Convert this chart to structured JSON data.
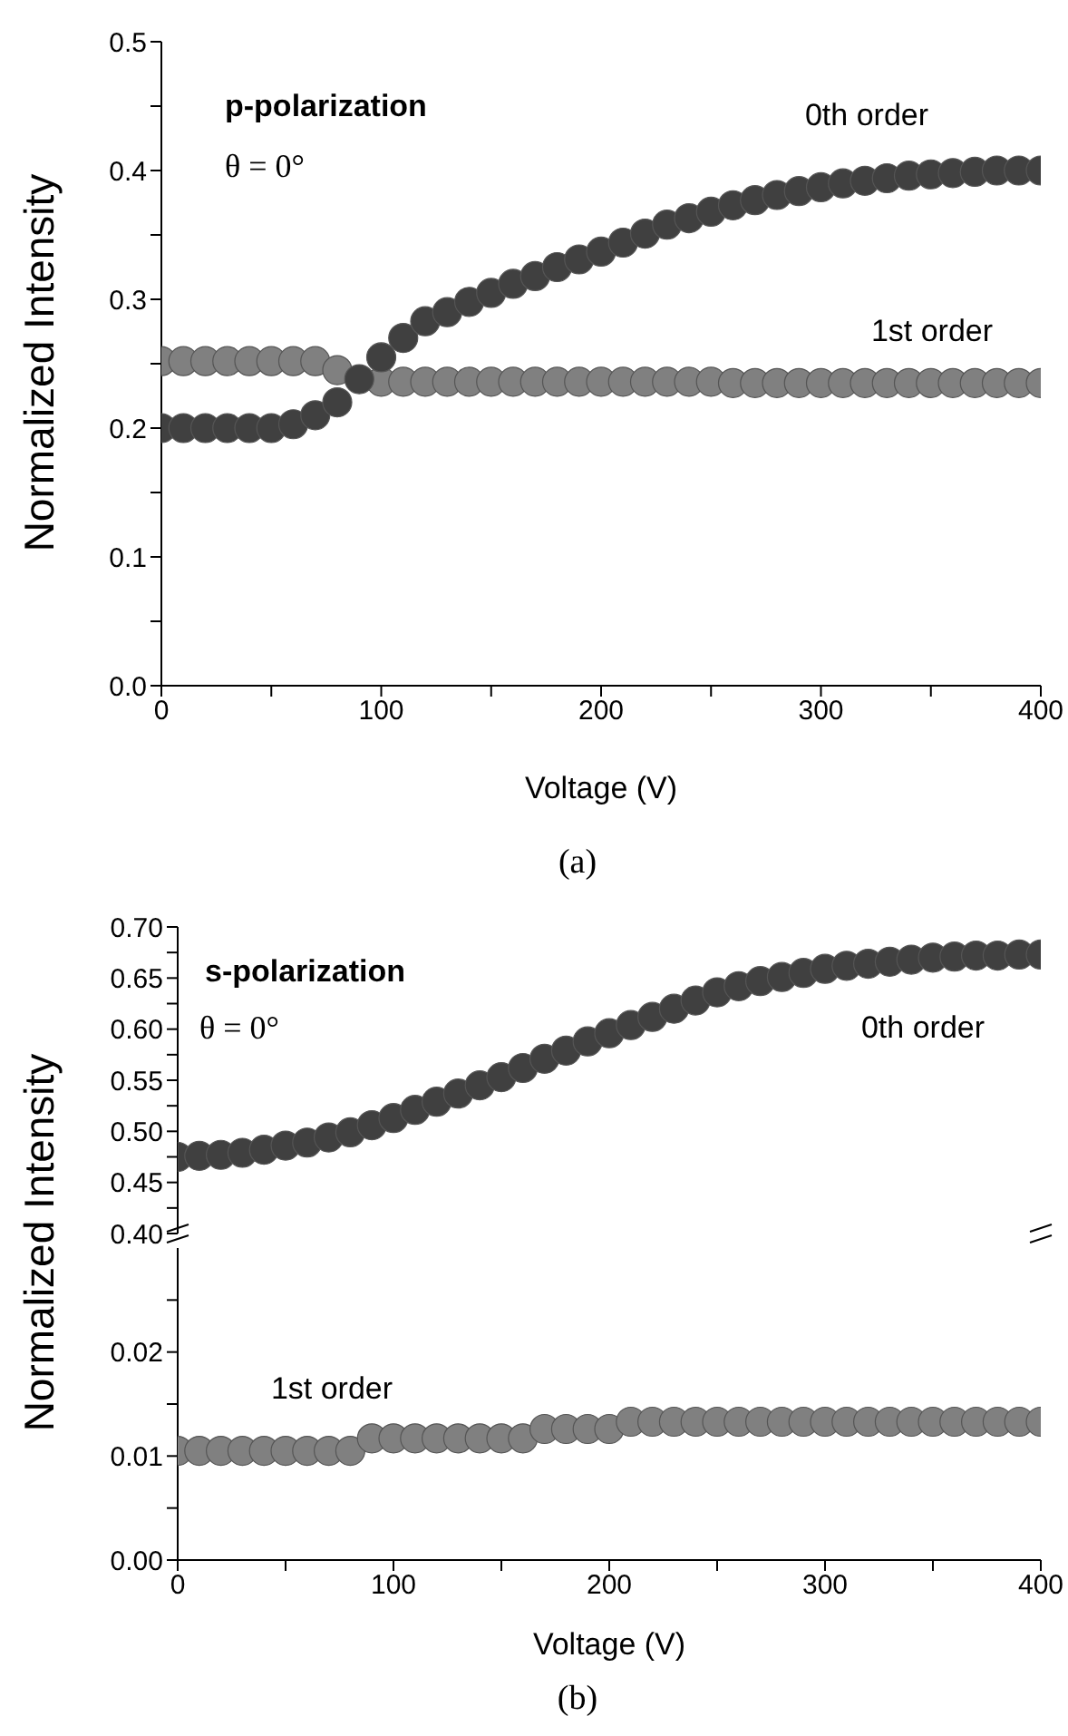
{
  "chart_data": [
    {
      "type": "scatter",
      "xlabel": "Voltage (V)",
      "ylabel": "Normalized Intensity",
      "annotations": [
        "p-polarization",
        "θ = 0°",
        "(a)"
      ],
      "marker": "circle",
      "x": [
        0,
        10,
        20,
        30,
        40,
        50,
        60,
        70,
        80,
        90,
        100,
        110,
        120,
        130,
        140,
        150,
        160,
        170,
        180,
        190,
        200,
        210,
        220,
        230,
        240,
        250,
        260,
        270,
        280,
        290,
        300,
        310,
        320,
        330,
        340,
        350,
        360,
        370,
        380,
        390,
        400
      ],
      "series": [
        {
          "name": "0th order",
          "color": "#404040",
          "values": [
            0.2,
            0.2,
            0.2,
            0.2,
            0.2,
            0.2,
            0.203,
            0.21,
            0.22,
            0.238,
            0.255,
            0.27,
            0.283,
            0.29,
            0.298,
            0.305,
            0.312,
            0.318,
            0.325,
            0.331,
            0.337,
            0.344,
            0.351,
            0.358,
            0.363,
            0.368,
            0.373,
            0.377,
            0.381,
            0.384,
            0.387,
            0.39,
            0.392,
            0.394,
            0.396,
            0.397,
            0.398,
            0.399,
            0.4,
            0.4,
            0.4
          ]
        },
        {
          "name": "1st order",
          "color": "#808080",
          "values": [
            0.252,
            0.252,
            0.252,
            0.252,
            0.252,
            0.252,
            0.252,
            0.252,
            0.245,
            null,
            0.236,
            0.236,
            0.236,
            0.236,
            0.236,
            0.236,
            0.236,
            0.236,
            0.236,
            0.236,
            0.236,
            0.236,
            0.236,
            0.236,
            0.236,
            0.236,
            0.235,
            0.235,
            0.235,
            0.235,
            0.235,
            0.235,
            0.235,
            0.235,
            0.235,
            0.235,
            0.235,
            0.235,
            0.235,
            0.235,
            0.235
          ]
        }
      ],
      "xlim": [
        0,
        400
      ],
      "xticks": [
        0,
        {
          "value": 50,
          "label": null
        },
        100,
        {
          "value": 150,
          "label": null
        },
        200,
        {
          "value": 250,
          "label": null
        },
        300,
        {
          "value": 350,
          "label": null
        },
        400
      ],
      "ylim": [
        0,
        0.5
      ],
      "yticks": [
        {
          "value": 0,
          "label": "0.0"
        },
        {
          "value": 0.05,
          "label": null
        },
        0.1,
        {
          "value": 0.15,
          "label": null
        },
        0.2,
        {
          "value": 0.25,
          "label": null
        },
        0.3,
        {
          "value": 0.35,
          "label": null
        },
        0.4,
        {
          "value": 0.45,
          "label": null
        },
        0.5
      ]
    },
    {
      "type": "scatter",
      "ylabel": "Normalized Intensity",
      "annotations": [
        "s-polarization",
        "θ = 0°"
      ],
      "marker": "circle",
      "tick_labels": "y",
      "x": [
        0,
        10,
        20,
        30,
        40,
        50,
        60,
        70,
        80,
        90,
        100,
        110,
        120,
        130,
        140,
        150,
        160,
        170,
        180,
        190,
        200,
        210,
        220,
        230,
        240,
        250,
        260,
        270,
        280,
        290,
        300,
        310,
        320,
        330,
        340,
        350,
        360,
        370,
        380,
        390,
        400
      ],
      "series": [
        {
          "name": "0th order",
          "color": "#404040",
          "values": [
            0.475,
            0.476,
            0.477,
            0.479,
            0.482,
            0.486,
            0.489,
            0.494,
            0.499,
            0.506,
            0.513,
            0.521,
            0.529,
            0.537,
            0.545,
            0.553,
            0.562,
            0.571,
            0.579,
            0.588,
            0.596,
            0.604,
            0.612,
            0.62,
            0.628,
            0.636,
            0.642,
            0.647,
            0.651,
            0.655,
            0.659,
            0.662,
            0.664,
            0.666,
            0.668,
            0.67,
            0.671,
            0.672,
            0.672,
            0.673,
            0.673
          ]
        }
      ],
      "xlim": [
        0,
        400
      ],
      "ylim": [
        0.4,
        0.7
      ],
      "yticks": [
        {
          "value": 0.4,
          "label": "0.40"
        },
        {
          "value": 0.425,
          "label": null
        },
        {
          "value": 0.45,
          "label": "0.45"
        },
        {
          "value": 0.475,
          "label": null
        },
        {
          "value": 0.5,
          "label": "0.50"
        },
        {
          "value": 0.525,
          "label": null
        },
        {
          "value": 0.55,
          "label": "0.55"
        },
        {
          "value": 0.575,
          "label": null
        },
        {
          "value": 0.6,
          "label": "0.60"
        },
        {
          "value": 0.625,
          "label": null
        },
        {
          "value": 0.65,
          "label": "0.65"
        },
        {
          "value": 0.675,
          "label": null
        },
        {
          "value": 0.7,
          "label": "0.70"
        }
      ]
    },
    {
      "type": "scatter",
      "xlabel": "Voltage (V)",
      "annotations": [
        "(b)"
      ],
      "marker": "circle",
      "x": [
        0,
        10,
        20,
        30,
        40,
        50,
        60,
        70,
        80,
        90,
        100,
        110,
        120,
        130,
        140,
        150,
        160,
        170,
        180,
        190,
        200,
        210,
        220,
        230,
        240,
        250,
        260,
        270,
        280,
        290,
        300,
        310,
        320,
        330,
        340,
        350,
        360,
        370,
        380,
        390,
        400
      ],
      "series": [
        {
          "name": "1st order",
          "color": "#808080",
          "values": [
            0.0105,
            0.0105,
            0.0105,
            0.0105,
            0.0105,
            0.0105,
            0.0105,
            0.0105,
            0.0105,
            0.0117,
            0.0117,
            0.0117,
            0.0117,
            0.0117,
            0.0117,
            0.0117,
            0.0117,
            0.0126,
            0.0126,
            0.0126,
            0.0126,
            0.0133,
            0.0133,
            0.0133,
            0.0133,
            0.0133,
            0.0133,
            0.0133,
            0.0133,
            0.0133,
            0.0133,
            0.0133,
            0.0133,
            0.0133,
            0.0133,
            0.0133,
            0.0133,
            0.0133,
            0.0133,
            0.0133,
            0.0133
          ]
        }
      ],
      "xlim": [
        0,
        400
      ],
      "xticks": [
        0,
        {
          "value": 50,
          "label": null
        },
        100,
        {
          "value": 150,
          "label": null
        },
        200,
        {
          "value": 250,
          "label": null
        },
        300,
        {
          "value": 350,
          "label": null
        },
        400
      ],
      "ylim": [
        0,
        0.03
      ],
      "yticks": [
        {
          "value": 0,
          "label": "0.00"
        },
        {
          "value": 0.005,
          "label": null
        },
        {
          "value": 0.01,
          "label": "0.01"
        },
        {
          "value": 0.015,
          "label": null
        },
        {
          "value": 0.02,
          "label": "0.02"
        },
        {
          "value": 0.025,
          "label": null
        }
      ]
    }
  ]
}
